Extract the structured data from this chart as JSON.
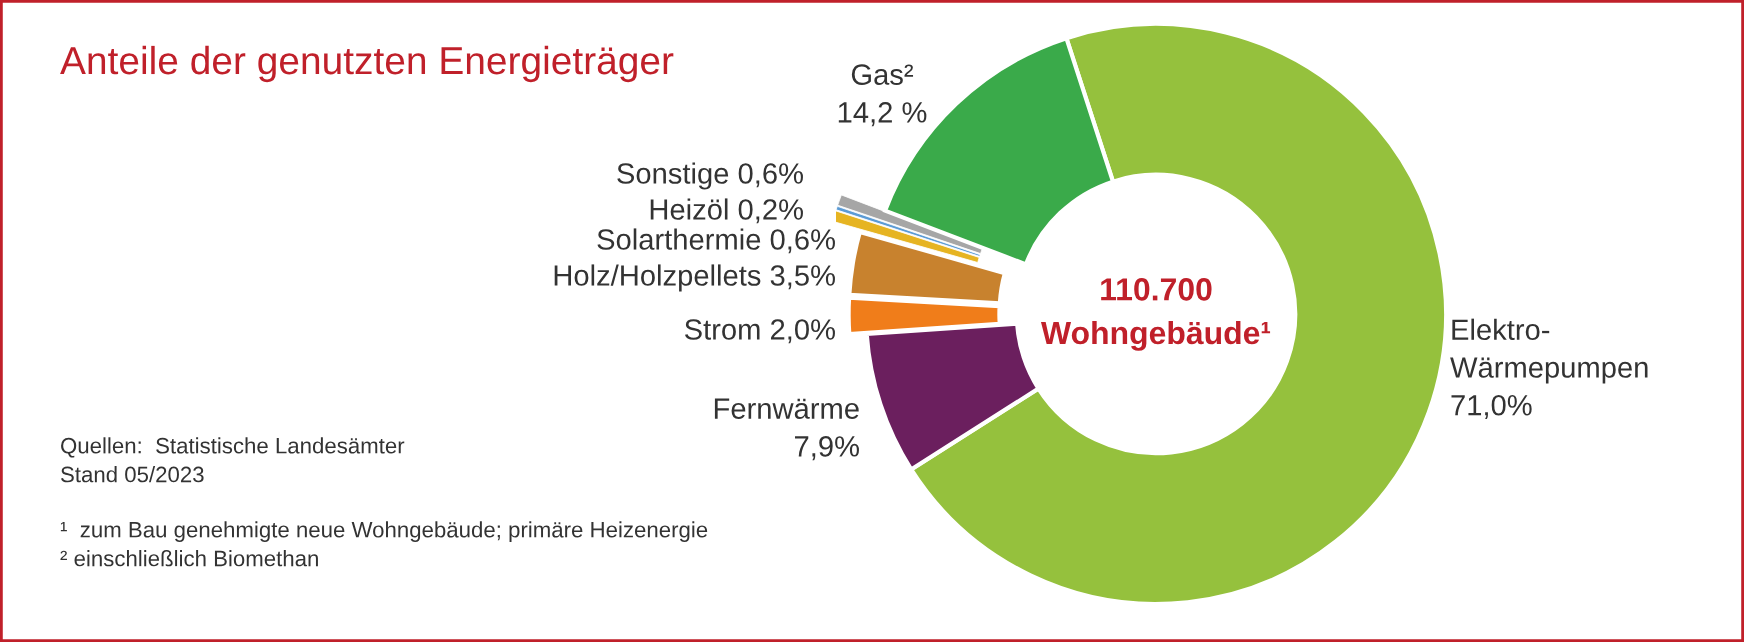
{
  "chart_data": {
    "type": "donut",
    "title": "Anteile der genutzten Energieträger",
    "categories": [
      "Elektro-Wärmepumpen",
      "Fernwärme",
      "Strom",
      "Holz/Holzpellets",
      "Solarthermie",
      "Heizöl",
      "Sonstige",
      "Gas²"
    ],
    "values": [
      71.0,
      7.9,
      2.0,
      3.5,
      0.6,
      0.2,
      0.6,
      14.2
    ],
    "value_labels": [
      "71,0%",
      "7,9%",
      "2,0%",
      "3,5%",
      "0,6%",
      "0,2%",
      "0,6%",
      "14,2 %"
    ],
    "colors": [
      "#95c13d",
      "#6b1f5e",
      "#f07d1a",
      "#c8822e",
      "#e6b422",
      "#5b9bd5",
      "#a6a6a6",
      "#3aaa4a"
    ],
    "annotations": [
      "110.700\nWohngebäude¹",
      "Quellen:  Statistische Landesämter\nStand 05/2023",
      "¹  zum Bau genehmigte neue Wohngebäude; primäre Heizenergie\n² einschließlich Biomethan"
    ]
  }
}
